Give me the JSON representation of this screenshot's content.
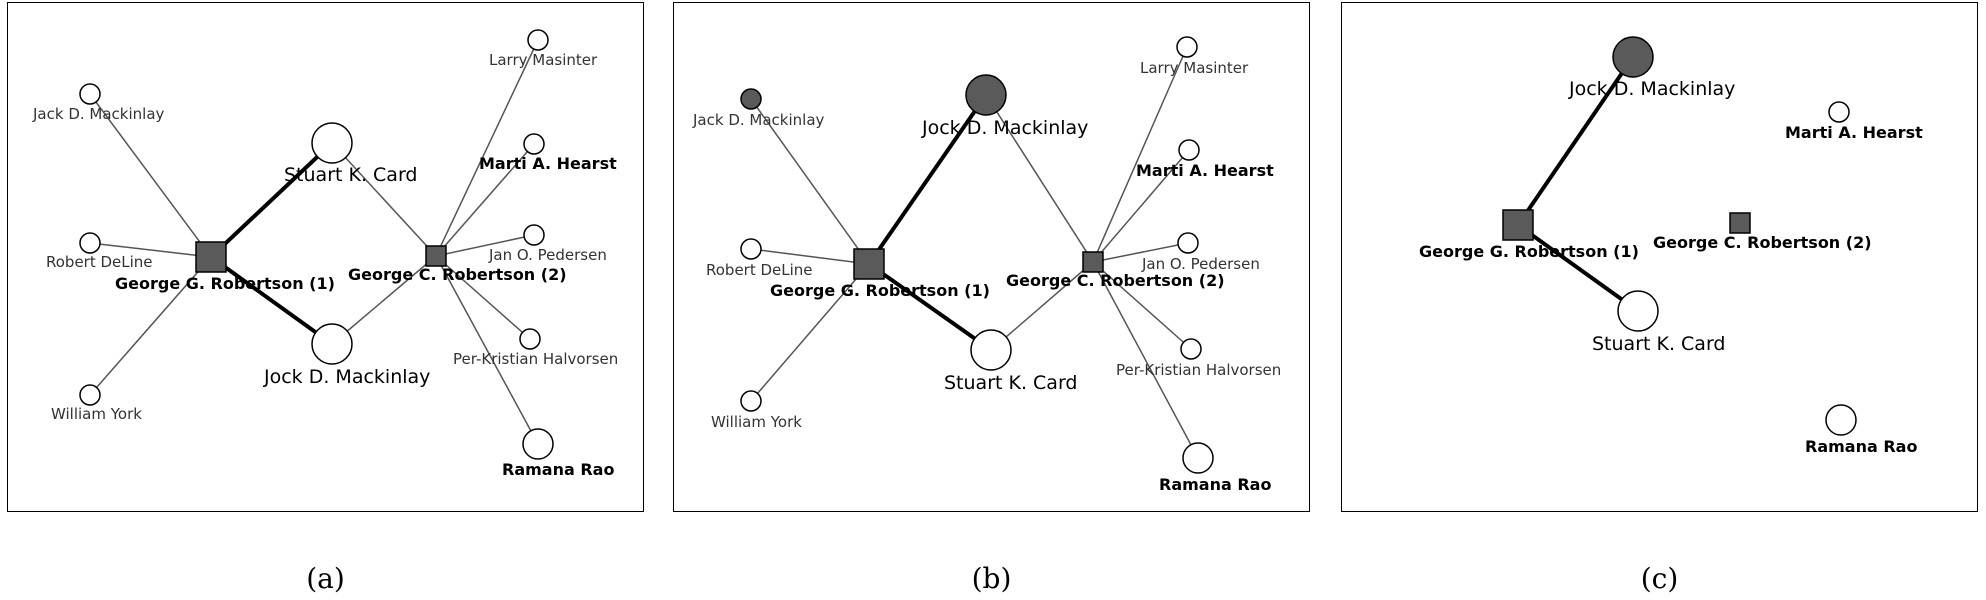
{
  "colors": {
    "node_fill_open": "#ffffff",
    "node_fill_dark": "#5a5a5a",
    "edge": "#555555",
    "edge_heavy": "#000000"
  },
  "panels": [
    {
      "caption": "(a)",
      "nodes": [
        {
          "id": "gg",
          "label": "George G. Robertson (1)",
          "shape": "square",
          "fill": "dark",
          "size": "large",
          "style": "bold"
        },
        {
          "id": "gc",
          "label": "George C. Robertson (2)",
          "shape": "square",
          "fill": "dark",
          "size": "small",
          "style": "bold"
        },
        {
          "id": "skc",
          "label": "Stuart K. Card",
          "shape": "circle",
          "fill": "open",
          "size": "large",
          "style": "large"
        },
        {
          "id": "jdm",
          "label": "Jock D. Mackinlay",
          "shape": "circle",
          "fill": "open",
          "size": "large",
          "style": "large"
        },
        {
          "id": "jack",
          "label": "Jack D. Mackinlay",
          "shape": "circle",
          "fill": "open",
          "size": "small",
          "style": "small"
        },
        {
          "id": "rd",
          "label": "Robert DeLine",
          "shape": "circle",
          "fill": "open",
          "size": "small",
          "style": "small"
        },
        {
          "id": "wy",
          "label": "William York",
          "shape": "circle",
          "fill": "open",
          "size": "small",
          "style": "small"
        },
        {
          "id": "lm",
          "label": "Larry Masinter",
          "shape": "circle",
          "fill": "open",
          "size": "small",
          "style": "small"
        },
        {
          "id": "mah",
          "label": "Marti A. Hearst",
          "shape": "circle",
          "fill": "open",
          "size": "small",
          "style": "bold"
        },
        {
          "id": "jop",
          "label": "Jan O. Pedersen",
          "shape": "circle",
          "fill": "open",
          "size": "small",
          "style": "small"
        },
        {
          "id": "pkh",
          "label": "Per-Kristian Halvorsen",
          "shape": "circle",
          "fill": "open",
          "size": "small",
          "style": "small"
        },
        {
          "id": "rr",
          "label": "Ramana Rao",
          "shape": "circle",
          "fill": "open",
          "size": "medium",
          "style": "bold"
        }
      ],
      "edges": [
        {
          "from": "gg",
          "to": "skc",
          "weight": "heavy"
        },
        {
          "from": "gg",
          "to": "jdm",
          "weight": "heavy"
        },
        {
          "from": "gg",
          "to": "jack",
          "weight": "thin"
        },
        {
          "from": "gg",
          "to": "rd",
          "weight": "thin"
        },
        {
          "from": "gg",
          "to": "wy",
          "weight": "thin"
        },
        {
          "from": "gc",
          "to": "skc",
          "weight": "thin"
        },
        {
          "from": "gc",
          "to": "jdm",
          "weight": "thin"
        },
        {
          "from": "gc",
          "to": "lm",
          "weight": "thin"
        },
        {
          "from": "gc",
          "to": "mah",
          "weight": "thin"
        },
        {
          "from": "gc",
          "to": "jop",
          "weight": "thin"
        },
        {
          "from": "gc",
          "to": "pkh",
          "weight": "thin"
        },
        {
          "from": "gc",
          "to": "rr",
          "weight": "thin"
        }
      ]
    },
    {
      "caption": "(b)",
      "nodes": [
        {
          "id": "gg",
          "label": "George G. Robertson (1)",
          "shape": "square",
          "fill": "dark",
          "size": "large",
          "style": "bold"
        },
        {
          "id": "gc",
          "label": "George C. Robertson (2)",
          "shape": "square",
          "fill": "dark",
          "size": "small",
          "style": "bold"
        },
        {
          "id": "jdm",
          "label": "Jock D. Mackinlay",
          "shape": "circle",
          "fill": "dark",
          "size": "large",
          "style": "large"
        },
        {
          "id": "skc",
          "label": "Stuart K. Card",
          "shape": "circle",
          "fill": "open",
          "size": "large",
          "style": "large"
        },
        {
          "id": "jack",
          "label": "Jack D. Mackinlay",
          "shape": "circle",
          "fill": "dark",
          "size": "small",
          "style": "small"
        },
        {
          "id": "rd",
          "label": "Robert DeLine",
          "shape": "circle",
          "fill": "open",
          "size": "small",
          "style": "small"
        },
        {
          "id": "wy",
          "label": "William York",
          "shape": "circle",
          "fill": "open",
          "size": "small",
          "style": "small"
        },
        {
          "id": "lm",
          "label": "Larry Masinter",
          "shape": "circle",
          "fill": "open",
          "size": "small",
          "style": "small"
        },
        {
          "id": "mah",
          "label": "Marti A. Hearst",
          "shape": "circle",
          "fill": "open",
          "size": "small",
          "style": "bold"
        },
        {
          "id": "jop",
          "label": "Jan O. Pedersen",
          "shape": "circle",
          "fill": "open",
          "size": "small",
          "style": "small"
        },
        {
          "id": "pkh",
          "label": "Per-Kristian Halvorsen",
          "shape": "circle",
          "fill": "open",
          "size": "small",
          "style": "small"
        },
        {
          "id": "rr",
          "label": "Ramana Rao",
          "shape": "circle",
          "fill": "open",
          "size": "medium",
          "style": "bold"
        }
      ],
      "edges": [
        {
          "from": "gg",
          "to": "jdm",
          "weight": "heavy"
        },
        {
          "from": "gg",
          "to": "skc",
          "weight": "heavy"
        },
        {
          "from": "gg",
          "to": "jack",
          "weight": "thin"
        },
        {
          "from": "gg",
          "to": "rd",
          "weight": "thin"
        },
        {
          "from": "gg",
          "to": "wy",
          "weight": "thin"
        },
        {
          "from": "gc",
          "to": "jdm",
          "weight": "thin"
        },
        {
          "from": "gc",
          "to": "skc",
          "weight": "thin"
        },
        {
          "from": "gc",
          "to": "lm",
          "weight": "thin"
        },
        {
          "from": "gc",
          "to": "mah",
          "weight": "thin"
        },
        {
          "from": "gc",
          "to": "jop",
          "weight": "thin"
        },
        {
          "from": "gc",
          "to": "pkh",
          "weight": "thin"
        },
        {
          "from": "gc",
          "to": "rr",
          "weight": "thin"
        }
      ]
    },
    {
      "caption": "(c)",
      "nodes": [
        {
          "id": "gg",
          "label": "George G. Robertson (1)",
          "shape": "square",
          "fill": "dark",
          "size": "large",
          "style": "bold"
        },
        {
          "id": "gc",
          "label": "George C. Robertson (2)",
          "shape": "square",
          "fill": "dark",
          "size": "small",
          "style": "bold"
        },
        {
          "id": "jdm",
          "label": "Jock D. Mackinlay",
          "shape": "circle",
          "fill": "dark",
          "size": "large",
          "style": "large"
        },
        {
          "id": "skc",
          "label": "Stuart K. Card",
          "shape": "circle",
          "fill": "open",
          "size": "large",
          "style": "large"
        },
        {
          "id": "mah",
          "label": "Marti A. Hearst",
          "shape": "circle",
          "fill": "open",
          "size": "small",
          "style": "bold"
        },
        {
          "id": "rr",
          "label": "Ramana Rao",
          "shape": "circle",
          "fill": "open",
          "size": "medium",
          "style": "bold"
        }
      ],
      "edges": [
        {
          "from": "gg",
          "to": "jdm",
          "weight": "heavy"
        },
        {
          "from": "gg",
          "to": "skc",
          "weight": "heavy"
        }
      ]
    }
  ]
}
